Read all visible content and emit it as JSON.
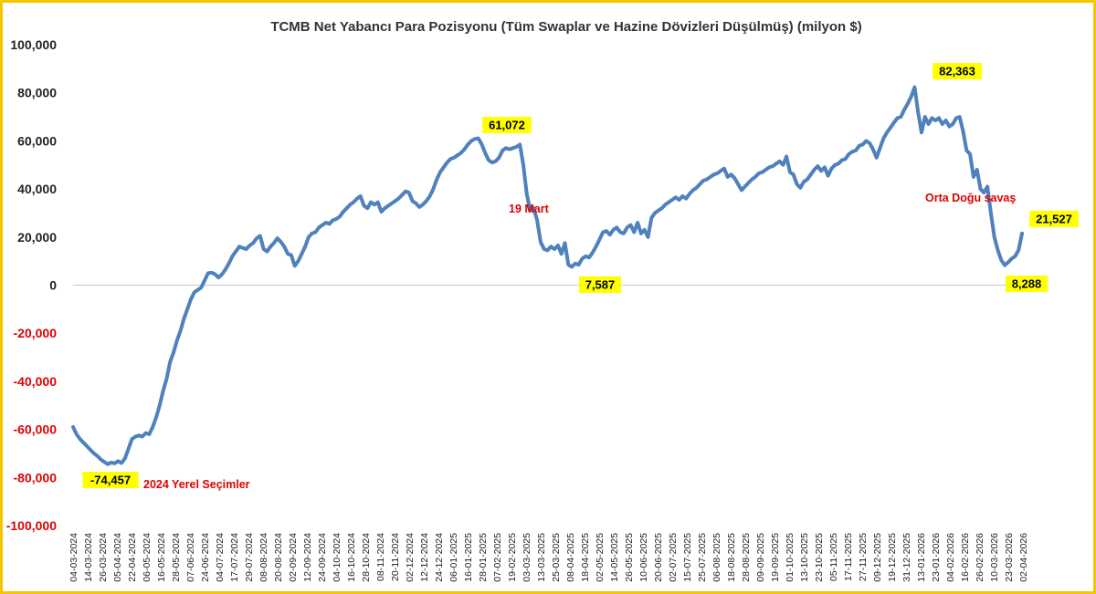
{
  "chart_data": {
    "type": "line",
    "title": "TCMB Net Yabancı Para Pozisyonu (Tüm Swaplar ve Hazine Dövizleri Düşülmüş) (milyon $)",
    "xlabel": "",
    "ylabel": "",
    "ylim": [
      -100000,
      100000
    ],
    "yticks": [
      100000,
      80000,
      60000,
      40000,
      20000,
      0,
      -20000,
      -40000,
      -60000,
      -80000,
      -100000
    ],
    "ytick_labels": [
      "100,000",
      "80,000",
      "60,000",
      "40,000",
      "20,000",
      "0",
      "-20,000",
      "-40,000",
      "-60,000",
      "-80,000",
      "-100,000"
    ],
    "negative_tick_color": "#E00000",
    "positive_tick_color": "#222222",
    "line_color": "#4F81BD",
    "grid": false,
    "legend": "none",
    "x_tick_labels": [
      "04-03-2024",
      "14-03-2024",
      "26-03-2024",
      "05-04-2024",
      "22-04-2024",
      "06-05-2024",
      "16-05-2024",
      "28-05-2024",
      "07-06-2024",
      "24-06-2024",
      "04-07-2024",
      "17-07-2024",
      "29-07-2024",
      "08-08-2024",
      "20-08-2024",
      "02-09-2024",
      "12-09-2024",
      "24-09-2024",
      "04-10-2024",
      "16-10-2024",
      "28-10-2024",
      "08-11-2024",
      "20-11-2024",
      "02-12-2024",
      "12-12-2024",
      "24-12-2024",
      "06-01-2025",
      "16-01-2025",
      "28-01-2025",
      "07-02-2025",
      "19-02-2025",
      "03-03-2025",
      "13-03-2025",
      "25-03-2025",
      "08-04-2025",
      "18-04-2025",
      "02-05-2025",
      "14-05-2025",
      "26-05-2025",
      "10-06-2025",
      "20-06-2025",
      "02-07-2025",
      "15-07-2025",
      "25-07-2025",
      "06-08-2025",
      "18-08-2025",
      "28-08-2025",
      "09-09-2025",
      "19-09-2025",
      "01-10-2025",
      "13-10-2025",
      "23-10-2025",
      "05-11-2025",
      "17-11-2025",
      "27-11-2025",
      "09-12-2025",
      "19-12-2025",
      "31-12-2025",
      "13-01-2026",
      "23-01-2026",
      "04-02-2026",
      "16-02-2026",
      "26-02-2026",
      "10-03-2026",
      "23-03-2026",
      "02-04-2026"
    ],
    "series": [
      {
        "values": [
          -59000,
          -62000,
          -64000,
          -65500,
          -67000,
          -68500,
          -70000,
          -71000,
          -72500,
          -73500,
          -74457,
          -73800,
          -74100,
          -73200,
          -74000,
          -72000,
          -68000,
          -64000,
          -63000,
          -62500,
          -63000,
          -61500,
          -62000,
          -59000,
          -55000,
          -50000,
          -44000,
          -39000,
          -32000,
          -28000,
          -23000,
          -19000,
          -14000,
          -10000,
          -6000,
          -3000,
          -2000,
          -1000,
          2000,
          5000,
          5200,
          4500,
          3200,
          4500,
          6500,
          9000,
          12000,
          14000,
          16000,
          15500,
          15000,
          16500,
          17500,
          19500,
          20500,
          15000,
          14000,
          16000,
          17500,
          19500,
          18000,
          16000,
          13000,
          12500,
          8000,
          10000,
          13000,
          16000,
          20000,
          21500,
          22000,
          24000,
          25000,
          26000,
          25500,
          27000,
          27500,
          28500,
          30500,
          32000,
          33500,
          34500,
          36000,
          37000,
          33000,
          32000,
          34500,
          33500,
          34500,
          30500,
          32000,
          33000,
          34000,
          35000,
          36000,
          37500,
          39000,
          38500,
          35000,
          34000,
          32500,
          33500,
          35000,
          37000,
          40000,
          44000,
          47000,
          49000,
          51000,
          52500,
          53000,
          54000,
          55000,
          56500,
          58500,
          60000,
          60800,
          61072,
          58500,
          55000,
          52000,
          51000,
          51500,
          53000,
          56000,
          57000,
          56500,
          57000,
          57500,
          58500,
          50000,
          38000,
          31000,
          32000,
          27000,
          18000,
          15000,
          14500,
          16000,
          15000,
          16500,
          13000,
          17500,
          8500,
          7587,
          9000,
          8500,
          11000,
          12000,
          11500,
          13500,
          16000,
          19000,
          22000,
          22500,
          21000,
          23000,
          24000,
          22000,
          21500,
          24000,
          25000,
          22000,
          26000,
          21500,
          23000,
          20000,
          28000,
          30000,
          31000,
          32000,
          33500,
          34500,
          35500,
          36500,
          35500,
          37000,
          36000,
          38000,
          39500,
          40500,
          42000,
          43500,
          44000,
          45000,
          46000,
          46500,
          47500,
          48500,
          45000,
          46000,
          44500,
          42000,
          39500,
          41000,
          42500,
          44000,
          45000,
          46500,
          47000,
          48000,
          49000,
          49500,
          50500,
          51500,
          50000,
          53500,
          47000,
          46000,
          42000,
          40500,
          43000,
          44000,
          46000,
          48000,
          49500,
          47500,
          49000,
          45500,
          48500,
          50000,
          50500,
          52000,
          52500,
          54500,
          55500,
          56000,
          58000,
          58500,
          60000,
          59000,
          56500,
          53000,
          57000,
          61000,
          63500,
          65500,
          67500,
          69500,
          70000,
          73000,
          75500,
          78500,
          82363,
          72000,
          63500,
          70000,
          67000,
          69500,
          68500,
          69500,
          67000,
          68500,
          66000,
          67000,
          69500,
          70000,
          64000,
          56000,
          54500,
          45000,
          48000,
          40000,
          38500,
          41000,
          30000,
          20000,
          14500,
          10500,
          8288,
          9500,
          11000,
          12000,
          14500,
          21527
        ]
      }
    ],
    "annotations": [
      {
        "text": "-74,457",
        "style": "yellow-box"
      },
      {
        "text": "2024 Yerel Seçimler",
        "style": "red"
      },
      {
        "text": "61,072",
        "style": "yellow-box"
      },
      {
        "text": "19 Mart",
        "style": "red"
      },
      {
        "text": "7,587",
        "style": "yellow-box"
      },
      {
        "text": "82,363",
        "style": "yellow-box"
      },
      {
        "text": "Orta Doğu savaş",
        "style": "red"
      },
      {
        "text": "21,527",
        "style": "yellow-box"
      },
      {
        "text": "8,288",
        "style": "yellow-box"
      }
    ],
    "annotation_red": "#E00000",
    "annotation_yellow": "#FFFF00"
  }
}
